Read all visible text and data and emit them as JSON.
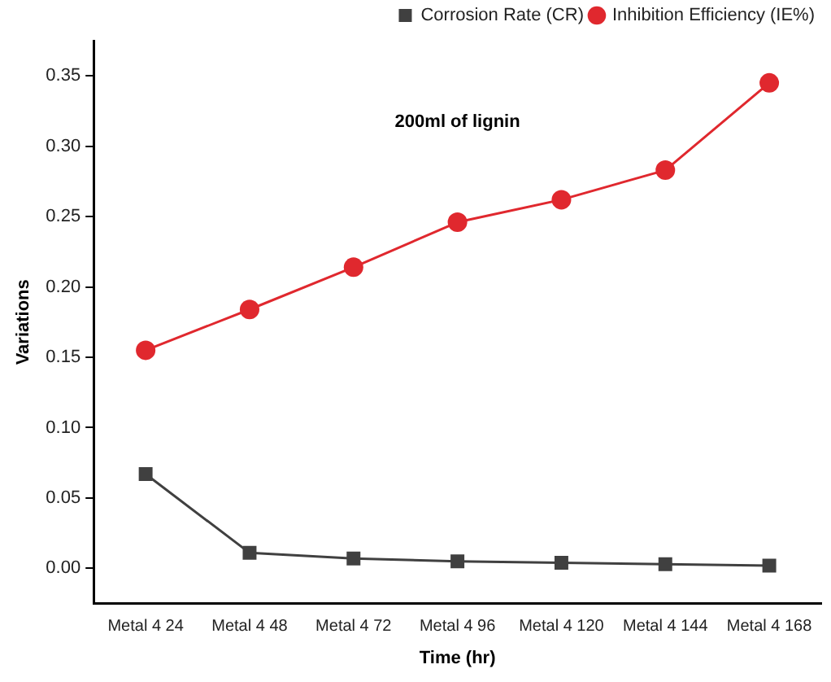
{
  "chart_data": {
    "type": "line",
    "annotations": [
      "200ml of lignin"
    ],
    "xlabel": "Time (hr)",
    "ylabel": "Variations",
    "categories": [
      "Metal 4 24",
      "Metal 4 48",
      "Metal 4 72",
      "Metal 4 96",
      "Metal 4 120",
      "Metal 4 144",
      "Metal 4 168"
    ],
    "series": [
      {
        "name": "Corrosion Rate (CR)",
        "color": "#404040",
        "marker": "square",
        "values": [
          0.067,
          0.011,
          0.007,
          0.005,
          0.004,
          0.003,
          0.002
        ]
      },
      {
        "name": "Inhibition Efficiency (IE%)",
        "color": "#e0282e",
        "marker": "circle",
        "values": [
          0.155,
          0.184,
          0.214,
          0.246,
          0.262,
          0.283,
          0.345
        ]
      }
    ],
    "ylim": [
      -0.025,
      0.375
    ],
    "yticks": [
      {
        "value": 0,
        "label": "0.00"
      },
      0.05,
      {
        "value": 0.1,
        "label": "0.10"
      },
      0.15,
      {
        "value": 0.2,
        "label": "0.20"
      },
      0.25,
      {
        "value": 0.3,
        "label": "0.30"
      },
      0.35
    ],
    "grid": false,
    "legend": "top right",
    "line_style": "solid"
  }
}
